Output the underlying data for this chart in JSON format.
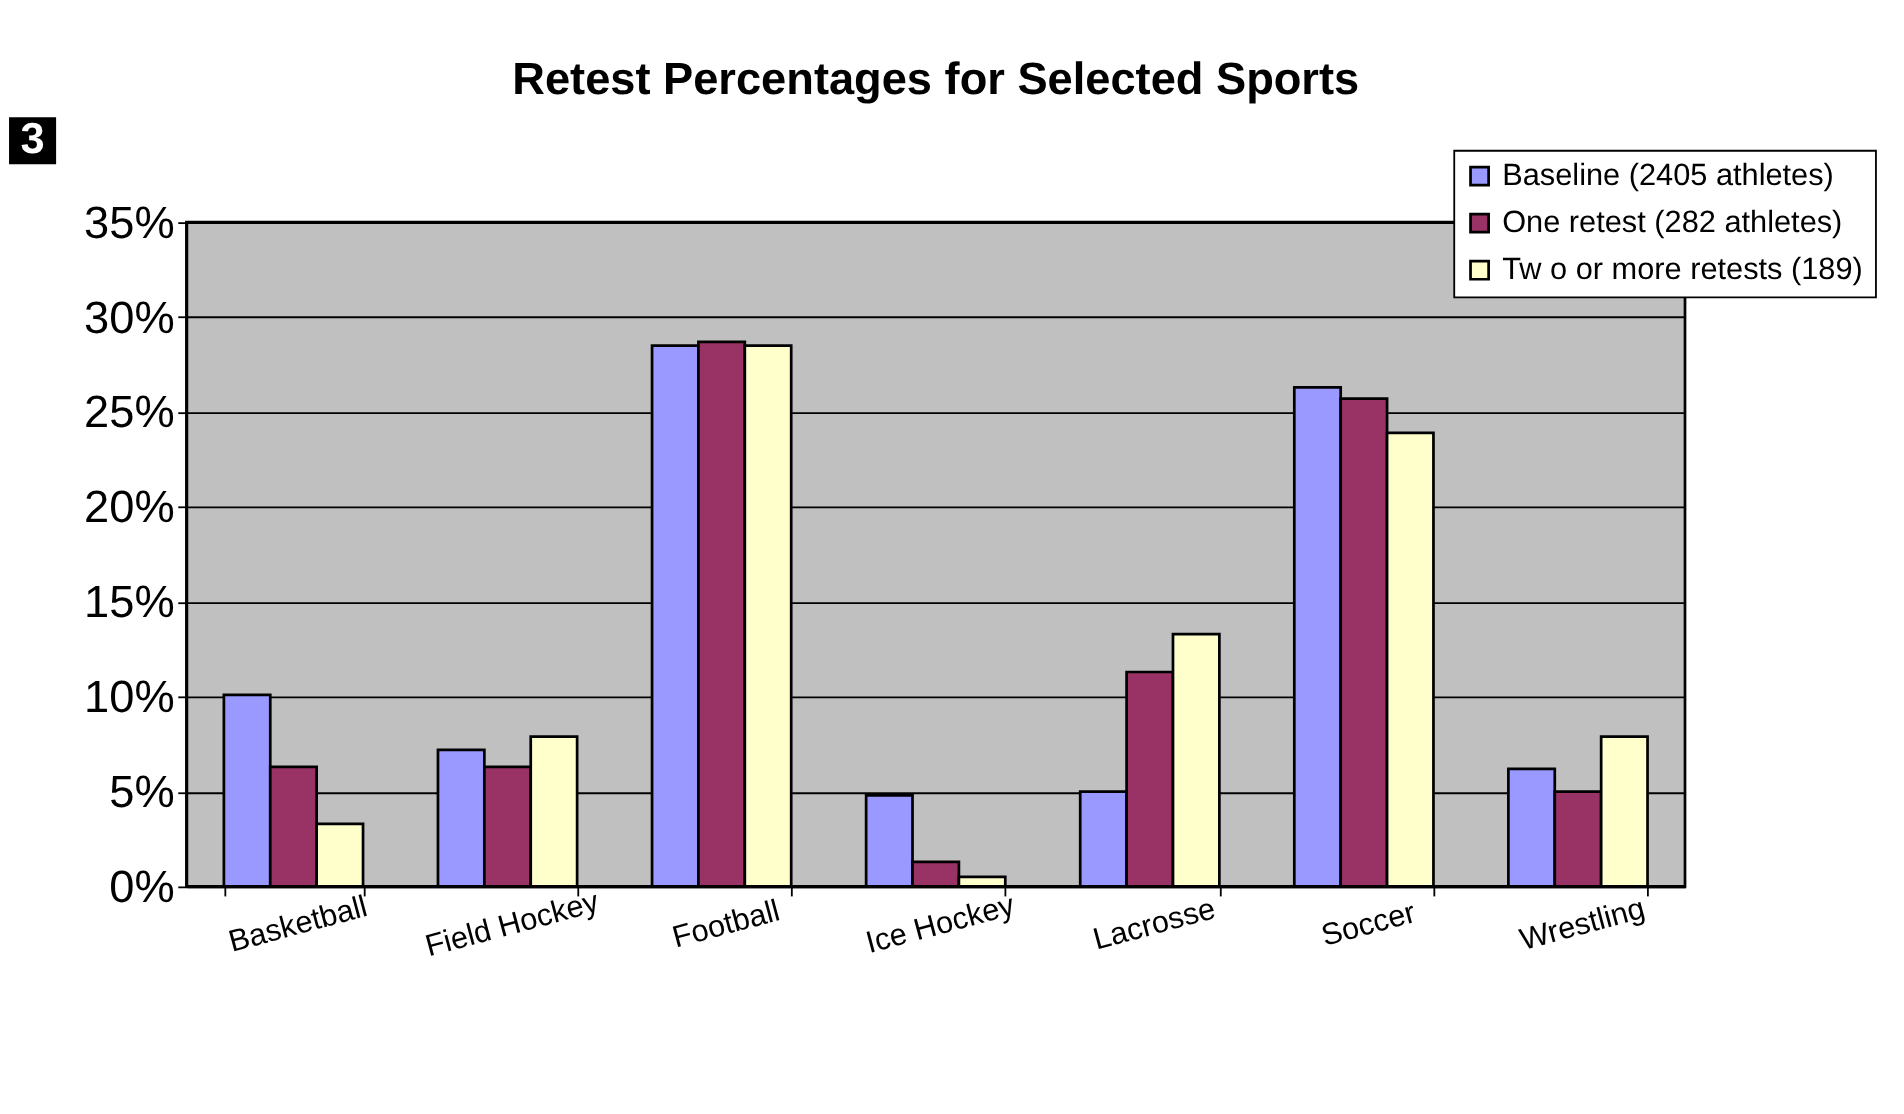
{
  "chart_data": {
    "type": "bar",
    "title": "Retest Percentages for Selected Sports",
    "annotations": [
      "3"
    ],
    "categories": [
      "Basketball",
      "Field Hockey",
      "Football",
      "Ice Hockey",
      "Lacrosse",
      "Soccer",
      "Wrestling"
    ],
    "series": [
      {
        "name": "Baseline (2405 athletes)",
        "color": "#9999ff",
        "values": [
          10.1,
          7.2,
          28.5,
          4.8,
          5.0,
          26.3,
          6.2
        ]
      },
      {
        "name": "One retest (282 athletes)",
        "color": "#993366",
        "values": [
          6.3,
          6.3,
          28.7,
          1.3,
          11.3,
          25.7,
          5.0
        ]
      },
      {
        "name": "Tw o or more retests (189)",
        "color": "#ffffcc",
        "values": [
          3.3,
          7.9,
          28.5,
          0.5,
          13.3,
          23.9,
          7.9
        ]
      }
    ],
    "ylim": [
      0,
      35
    ],
    "yticks": [
      {
        "value": 0,
        "label": "0%"
      },
      {
        "value": 5,
        "label": "5%"
      },
      {
        "value": 10,
        "label": "10%"
      },
      {
        "value": 15,
        "label": "15%"
      },
      {
        "value": 20,
        "label": "20%"
      },
      {
        "value": 25,
        "label": "25%"
      },
      {
        "value": 30,
        "label": "30%"
      },
      {
        "value": 35,
        "label": "35%"
      }
    ],
    "grid": "y",
    "legend": "top right"
  }
}
